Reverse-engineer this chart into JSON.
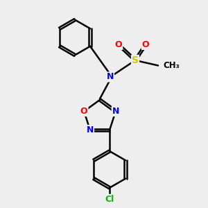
{
  "bg_color": "#eeeeee",
  "atom_colors": {
    "C": "#000000",
    "N": "#0000ff",
    "O": "#ff0000",
    "S": "#cccc00",
    "Cl": "#00bb00",
    "H": "#000000"
  },
  "bond_color": "#000000",
  "bond_width": 1.8,
  "font_size": 9,
  "figsize": [
    3.0,
    3.0
  ],
  "dpi": 100,
  "xlim": [
    0,
    10
  ],
  "ylim": [
    0,
    10
  ]
}
